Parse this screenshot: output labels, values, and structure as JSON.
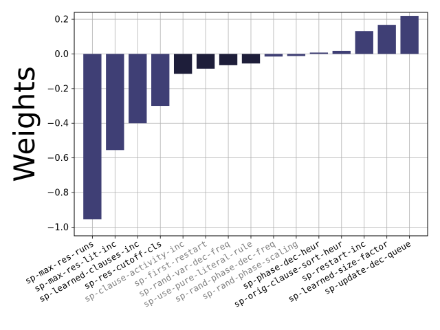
{
  "chart_data": {
    "type": "bar",
    "ylabel": "Weights",
    "xlabel": "",
    "title": "",
    "ylim": [
      -1.05,
      0.24
    ],
    "yticks": [
      0.2,
      0.0,
      -0.2,
      -0.4,
      -0.6,
      -0.8,
      -1.0
    ],
    "ytick_labels": [
      "0.2",
      "0.0",
      "−0.2",
      "−0.4",
      "−0.6",
      "−0.8",
      "−1.0"
    ],
    "grid": true,
    "categories": [
      "sp-max-res-runs",
      "sp-max-res-lit-inc",
      "sp-learned-clauses-inc",
      "sp-res-cutoff-cls",
      "sp-clause-activity-inc",
      "sp-first-restart",
      "sp-rand-var-dec-freq",
      "sp-use-pure-literal-rule",
      "sp-rand-phase-dec-freq",
      "sp-rand-phase-scaling",
      "sp-phase-dec-heur",
      "sp-orig-clause-sort-heur",
      "sp-restart-inc",
      "sp-learned-size-factor",
      "sp-update-dec-queue"
    ],
    "values": [
      -0.955,
      -0.555,
      -0.4,
      -0.3,
      -0.115,
      -0.085,
      -0.065,
      -0.055,
      -0.015,
      -0.012,
      0.008,
      0.018,
      0.132,
      0.168,
      0.22
    ],
    "bar_colors": [
      "#3f3f75",
      "#3f3f75",
      "#3f3f75",
      "#3f3f75",
      "#1e1e3a",
      "#1e1e3a",
      "#1e1e3a",
      "#1e1e3a",
      "#3f3f75",
      "#3f3f75",
      "#3f3f75",
      "#3f3f75",
      "#3f3f75",
      "#3f3f75",
      "#3f3f75"
    ],
    "label_colors": [
      "#000000",
      "#000000",
      "#000000",
      "#000000",
      "#808080",
      "#808080",
      "#808080",
      "#808080",
      "#808080",
      "#808080",
      "#000000",
      "#000000",
      "#000000",
      "#000000",
      "#000000"
    ]
  }
}
